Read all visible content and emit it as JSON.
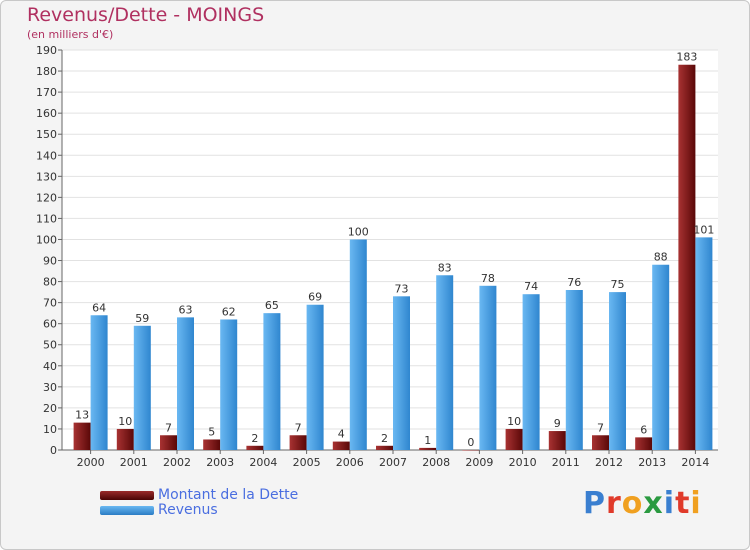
{
  "chart_data": {
    "type": "bar",
    "title": "Revenus/Dette - MOINGS",
    "subtitle": "(en milliers d'€)",
    "categories": [
      "2000",
      "2001",
      "2002",
      "2003",
      "2004",
      "2005",
      "2006",
      "2007",
      "2008",
      "2009",
      "2010",
      "2011",
      "2012",
      "2013",
      "2014"
    ],
    "series": [
      {
        "name": "Montant de la Dette",
        "color": "#7a1a1a",
        "values": [
          13,
          10,
          7,
          5,
          2,
          7,
          4,
          2,
          1,
          0,
          10,
          9,
          7,
          6,
          183
        ]
      },
      {
        "name": "Revenus",
        "color": "#4aa0e2",
        "values": [
          64,
          59,
          63,
          62,
          65,
          69,
          100,
          73,
          83,
          78,
          74,
          76,
          75,
          88,
          101
        ]
      }
    ],
    "ylim": [
      0,
      190
    ],
    "yticks": [
      0,
      10,
      20,
      30,
      40,
      50,
      60,
      70,
      80,
      90,
      100,
      110,
      120,
      130,
      140,
      150,
      160,
      170,
      180,
      190
    ],
    "grid": true,
    "legend": "bottom-left"
  },
  "logo": {
    "letters": [
      {
        "ch": "P",
        "color": "#3a7fd0"
      },
      {
        "ch": "r",
        "color": "#e03a2a"
      },
      {
        "ch": "o",
        "color": "#f0a020"
      },
      {
        "ch": "x",
        "color": "#2a9a40"
      },
      {
        "ch": "i",
        "color": "#3a7fd0"
      },
      {
        "ch": "t",
        "color": "#e03a2a"
      },
      {
        "ch": "i",
        "color": "#f0a020"
      }
    ]
  }
}
